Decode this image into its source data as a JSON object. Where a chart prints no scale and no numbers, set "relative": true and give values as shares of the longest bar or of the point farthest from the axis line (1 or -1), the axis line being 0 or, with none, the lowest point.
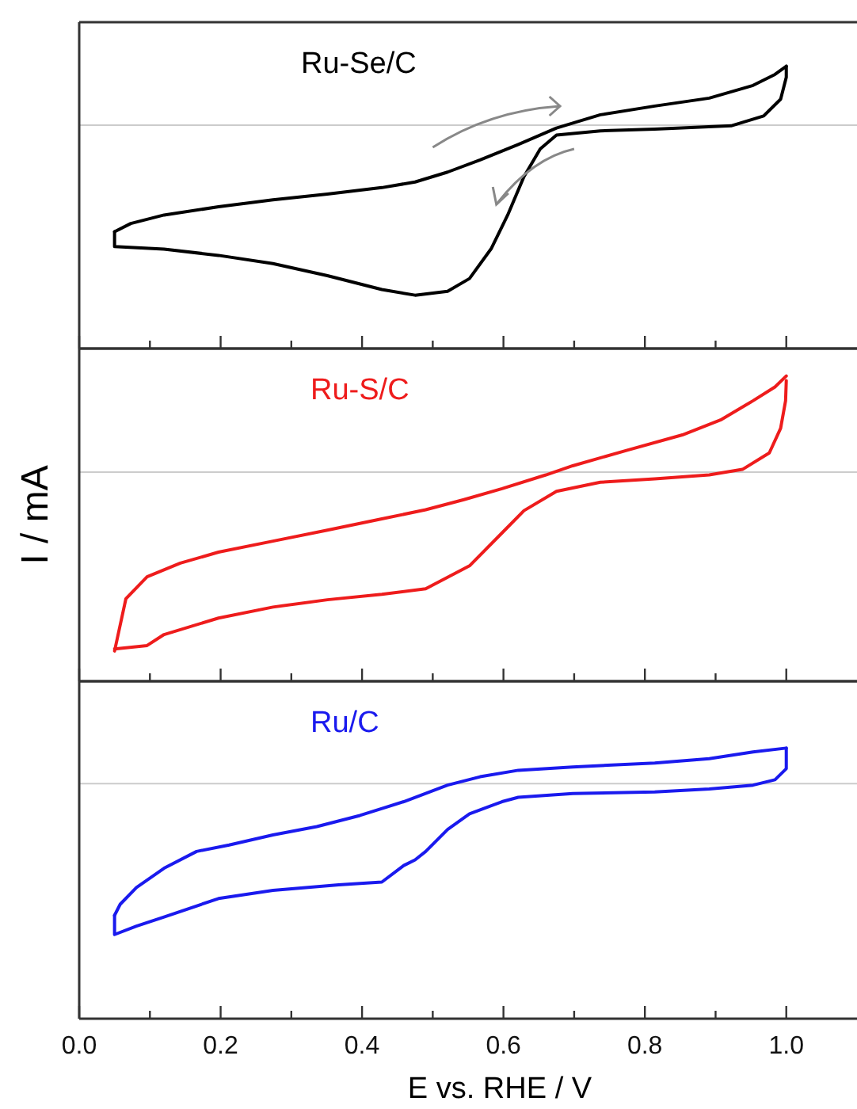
{
  "chart_data": [
    {
      "type": "line",
      "relative": true,
      "xlim": [
        0,
        1.1
      ],
      "xticks": [
        0,
        {
          "value": 0.1,
          "label": null
        },
        0.2,
        {
          "value": 0.3,
          "label": null
        },
        0.4,
        {
          "value": 0.5,
          "label": null
        },
        0.6,
        {
          "value": 0.7,
          "label": null
        },
        0.8,
        {
          "value": 0.9,
          "label": null
        },
        1
      ],
      "tick_labels": false,
      "grid": false,
      "legend": false,
      "line_style": "solid",
      "marker": "none",
      "ref_lines": [
        {
          "axis": "y",
          "value": 0.791,
          "color": "#cccccc"
        }
      ],
      "series": [
        {
          "name": "Ru-Se/C",
          "color": "#000000",
          "x": [
            0.05,
            0.073,
            0.12,
            0.197,
            0.274,
            0.351,
            0.428,
            0.475,
            0.521,
            0.567,
            0.621,
            0.675,
            0.737,
            0.814,
            0.891,
            0.953,
            0.984,
            1.0
          ],
          "values": [
            0.414,
            0.443,
            0.473,
            0.502,
            0.527,
            0.547,
            0.57,
            0.59,
            0.625,
            0.668,
            0.723,
            0.781,
            0.828,
            0.859,
            0.887,
            0.932,
            0.971,
            1
          ]
        },
        {
          "color": "#000000",
          "x": [
            1.0,
            1.0,
            0.992,
            0.968,
            0.922,
            0.814,
            0.737,
            0.675,
            0.652,
            0.629,
            0.606,
            0.583,
            0.552,
            0.521,
            0.475,
            0.428,
            0.351,
            0.274,
            0.197,
            0.12,
            0.05,
            0.05
          ],
          "values": [
            1,
            0.961,
            0.883,
            0.824,
            0.789,
            0.777,
            0.771,
            0.756,
            0.707,
            0.609,
            0.473,
            0.355,
            0.248,
            0.203,
            0.189,
            0.209,
            0.258,
            0.301,
            0.33,
            0.352,
            0.361,
            0.414
          ]
        }
      ]
    },
    {
      "type": "line",
      "relative": true,
      "xlim": [
        0,
        1.1
      ],
      "xticks": [
        0,
        {
          "value": 0.1,
          "label": null
        },
        0.2,
        {
          "value": 0.3,
          "label": null
        },
        0.4,
        {
          "value": 0.5,
          "label": null
        },
        0.6,
        {
          "value": 0.7,
          "label": null
        },
        0.8,
        {
          "value": 0.9,
          "label": null
        },
        1
      ],
      "tick_labels": false,
      "grid": false,
      "legend": false,
      "line_style": "solid",
      "marker": "none",
      "ylabel": "I / mA",
      "ref_lines": [
        {
          "axis": "y",
          "value": 0.685,
          "color": "#cccccc"
        }
      ],
      "series": [
        {
          "name": "Ru-S/C",
          "color": "#ee1c1c",
          "x": [
            0.05,
            0.066,
            0.096,
            0.143,
            0.197,
            0.274,
            0.351,
            0.428,
            0.49,
            0.544,
            0.598,
            0.66,
            0.698,
            0.775,
            0.853,
            0.907,
            0.953,
            0.984,
            1.0
          ],
          "values": [
            0.099,
            0.27,
            0.342,
            0.387,
            0.423,
            0.459,
            0.495,
            0.532,
            0.562,
            0.595,
            0.631,
            0.676,
            0.706,
            0.757,
            0.807,
            0.856,
            0.919,
            0.964,
            1
          ]
        },
        {
          "color": "#ee1c1c",
          "x": [
            1.0,
            0.999,
            0.992,
            0.976,
            0.938,
            0.891,
            0.814,
            0.737,
            0.675,
            0.629,
            0.598,
            0.552,
            0.49,
            0.428,
            0.351,
            0.274,
            0.197,
            0.12,
            0.096,
            0.05
          ],
          "values": [
            0.985,
            0.919,
            0.829,
            0.748,
            0.694,
            0.676,
            0.663,
            0.652,
            0.622,
            0.559,
            0.486,
            0.378,
            0.303,
            0.285,
            0.267,
            0.243,
            0.207,
            0.153,
            0.117,
            0.106
          ]
        }
      ]
    },
    {
      "type": "line",
      "relative": true,
      "xlim": [
        0,
        1.1
      ],
      "xticks": [
        {
          "value": 0,
          "label": "0.0"
        },
        {
          "value": 0.1,
          "label": null
        },
        {
          "value": 0.2,
          "label": "0.2"
        },
        {
          "value": 0.3,
          "label": null
        },
        {
          "value": 0.4,
          "label": "0.4"
        },
        {
          "value": 0.5,
          "label": null
        },
        {
          "value": 0.6,
          "label": "0.6"
        },
        {
          "value": 0.7,
          "label": null
        },
        {
          "value": 0.8,
          "label": "0.8"
        },
        {
          "value": 0.9,
          "label": null
        },
        {
          "value": 1,
          "label": "1.0"
        }
      ],
      "tick_labels": "x",
      "grid": false,
      "legend": false,
      "line_style": "solid",
      "marker": "none",
      "xlabel": "E vs. RHE / V",
      "ref_lines": [
        {
          "axis": "y",
          "value": 0.869,
          "color": "#cccccc"
        }
      ],
      "series": [
        {
          "name": "Ru/C",
          "color": "#1a1aee",
          "x": [
            0.05,
            0.058,
            0.081,
            0.12,
            0.166,
            0.212,
            0.274,
            0.336,
            0.397,
            0.459,
            0.521,
            0.567,
            0.621,
            0.698,
            0.814,
            0.891,
            0.953,
            1.0
          ],
          "values": [
            0.382,
            0.423,
            0.485,
            0.556,
            0.618,
            0.642,
            0.679,
            0.71,
            0.751,
            0.802,
            0.863,
            0.894,
            0.918,
            0.93,
            0.945,
            0.961,
            0.986,
            1
          ]
        },
        {
          "color": "#1a1aee",
          "x": [
            1.0,
            1.0,
            0.984,
            0.953,
            0.891,
            0.814,
            0.698,
            0.621,
            0.598,
            0.552,
            0.521,
            0.49,
            0.475,
            0.459,
            0.428,
            0.367,
            0.274,
            0.197,
            0.12,
            0.081,
            0.05,
            0.05
          ],
          "values": [
            1,
            0.924,
            0.883,
            0.863,
            0.849,
            0.838,
            0.832,
            0.818,
            0.802,
            0.757,
            0.699,
            0.618,
            0.587,
            0.566,
            0.505,
            0.495,
            0.474,
            0.444,
            0.376,
            0.342,
            0.311,
            0.382
          ]
        }
      ]
    }
  ]
}
